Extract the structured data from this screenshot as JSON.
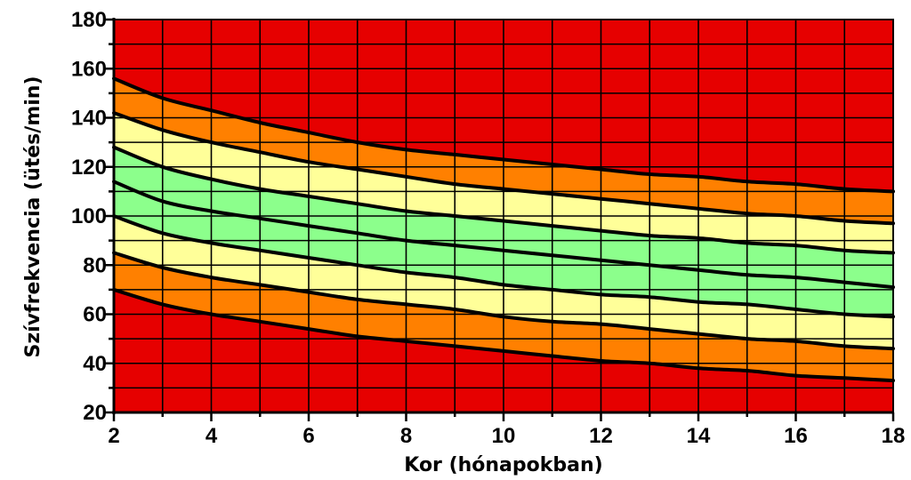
{
  "chart_data": {
    "type": "area",
    "title": "",
    "xlabel": "Kor (hónapokban)",
    "ylabel": "Szívfrekvencia (ütés/min)",
    "xlim": [
      2,
      18
    ],
    "ylim": [
      20,
      180
    ],
    "xticks": [
      2,
      4,
      6,
      8,
      10,
      12,
      14,
      16,
      18
    ],
    "yticks": [
      20,
      40,
      60,
      80,
      100,
      120,
      140,
      160,
      180
    ],
    "grid": true,
    "background_color": "#E60000",
    "grid_color": "#000000",
    "x": [
      2,
      3,
      4,
      5,
      6,
      7,
      8,
      9,
      10,
      11,
      12,
      13,
      14,
      15,
      16,
      17,
      18
    ],
    "series": [
      {
        "values": [
          156,
          148,
          143,
          138,
          134,
          130,
          127,
          125,
          123,
          121,
          119,
          117,
          116,
          114,
          113,
          111,
          110
        ]
      },
      {
        "values": [
          142,
          135,
          130,
          126,
          122,
          119,
          116,
          113,
          111,
          109,
          107,
          105,
          103,
          101,
          100,
          98,
          97
        ]
      },
      {
        "values": [
          128,
          120,
          115,
          111,
          108,
          105,
          102,
          100,
          98,
          96,
          94,
          92,
          91,
          89,
          88,
          86,
          85
        ]
      },
      {
        "values": [
          114,
          106,
          102,
          99,
          96,
          93,
          90,
          88,
          86,
          84,
          82,
          80,
          78,
          76,
          75,
          73,
          71
        ]
      },
      {
        "values": [
          100,
          93,
          89,
          86,
          83,
          80,
          77,
          75,
          72,
          70,
          68,
          67,
          65,
          64,
          62,
          60,
          59
        ]
      },
      {
        "values": [
          85,
          79,
          75,
          72,
          69,
          66,
          64,
          62,
          59,
          57,
          56,
          54,
          52,
          50,
          49,
          47,
          46
        ]
      },
      {
        "values": [
          70,
          64,
          60,
          57,
          54,
          51,
          49,
          47,
          45,
          43,
          41,
          40,
          38,
          37,
          35,
          34,
          33
        ]
      }
    ],
    "band_colors": [
      "#FF8000",
      "#FFFF99",
      "#8CFF8C",
      "#8CFF8C",
      "#FFFF99",
      "#FF8000"
    ]
  }
}
